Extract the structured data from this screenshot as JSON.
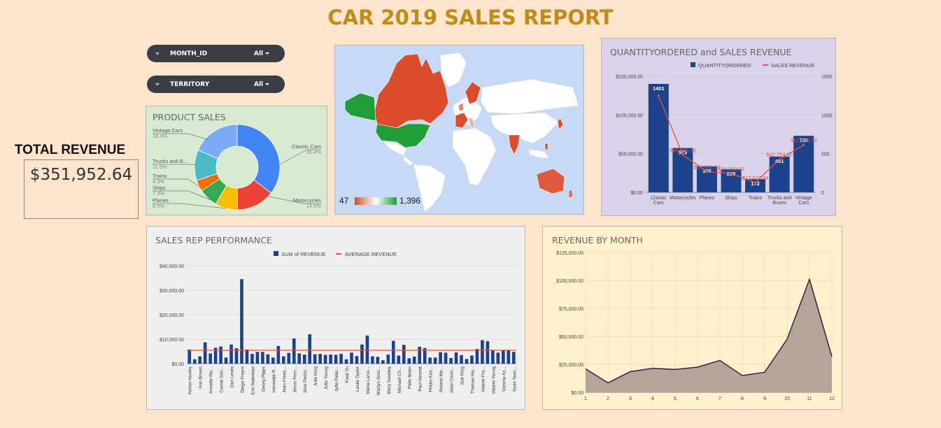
{
  "report_title": "CAR 2019 SALES REPORT",
  "filters": [
    {
      "label": "MONTH_ID",
      "value": "All"
    },
    {
      "label": "TERRITORY",
      "value": "All"
    }
  ],
  "total_revenue": {
    "label": "TOTAL REVENUE",
    "value": "$351,952.64"
  },
  "colors": {
    "background": "#fde4cd",
    "title": "#c28a16",
    "bar": "#1b428b",
    "line": "#e05545"
  },
  "product_sales": {
    "title": "PRODUCT SALES",
    "chart_data": {
      "type": "pie",
      "slices": [
        {
          "label": "Classic Cars",
          "pct": "35.4%",
          "value": 35.4,
          "color": "#4285f4"
        },
        {
          "label": "Motorcycles",
          "pct": "14.5%",
          "value": 14.5,
          "color": "#ea4335"
        },
        {
          "label": "Planes",
          "pct": "8.5%",
          "value": 8.5,
          "color": "#fbbc04"
        },
        {
          "label": "Ships",
          "pct": "7.3%",
          "value": 7.3,
          "color": "#34a853"
        },
        {
          "label": "Trains",
          "pct": "4.3%",
          "value": 4.3,
          "color": "#ff6d01"
        },
        {
          "label": "Trucks and B...",
          "pct": "11.6%",
          "value": 11.6,
          "color": "#46bdc6"
        },
        {
          "label": "Vintage Cars",
          "pct": "18.4%",
          "value": 18.4,
          "color": "#7baaf7"
        }
      ]
    }
  },
  "map": {
    "legend_min": "47",
    "legend_max": "1,396"
  },
  "qty_chart": {
    "title": "QUANTITYORDERED and SALES REVENUE",
    "chart_data": {
      "type": "bar",
      "categories": [
        "Classic Cars",
        "Motorcycles",
        "Planes",
        "Ships",
        "Trains",
        "Trucks and Buses",
        "Vintage Cars"
      ],
      "series": [
        {
          "name": "QUANTITYORDERED",
          "values": [
            1401,
            573,
            336,
            299,
            172,
            461,
            730
          ]
        },
        {
          "name": "SALES REVENUE",
          "values": [
            124712,
            48295.28,
            26801,
            24340,
            12627.84,
            42754.6,
            61206.79
          ]
        }
      ],
      "revenue_labels": [
        "",
        "$48,295.28",
        "$26,801.00",
        "$24,340.00",
        "$12,627.84",
        "$42,754.60",
        "$61,206.79"
      ],
      "left_axis": [
        "$0.00",
        "$50,000.00",
        "$100,000.00",
        "$150,000.00"
      ],
      "right_axis": [
        "0",
        "500",
        "1000",
        "1500"
      ],
      "ylim_left": [
        0,
        150000
      ],
      "ylim_right": [
        0,
        1500
      ]
    }
  },
  "sales_rep": {
    "title": "SALES REP PERFORMANCE",
    "chart_data": {
      "type": "bar",
      "series": [
        {
          "name": "SUM of REVENUE",
          "values": [
            5800,
            1800,
            3000,
            8700,
            4200,
            6500,
            7000,
            2500,
            7800,
            6300,
            34500,
            5800,
            4000,
            4800,
            4800,
            3800,
            2500,
            7200,
            3000,
            4400,
            10300,
            4200,
            3700,
            12000,
            3800,
            4000,
            3600,
            3700,
            3600,
            4000,
            1800,
            4500,
            3100,
            7800,
            11500,
            3000,
            2800,
            1400,
            3700,
            9300,
            3300,
            7700,
            2200,
            2900,
            6900,
            6400,
            2500,
            2500,
            4700,
            4500,
            2300,
            4600,
            3500,
            1900,
            3300,
            6000,
            9600,
            9200,
            5500,
            4500,
            5600,
            5500,
            4800
          ]
        },
        {
          "name": "AVERAGE REVENUE",
          "values": [
            5500
          ]
        }
      ],
      "y_ticks": [
        "$0.00",
        "$10,000.00",
        "$20,000.00",
        "$30,000.00",
        "$40,000.00"
      ],
      "ylim": [
        0,
        40000
      ],
      "x_labels": [
        "Adrian Huxley",
        "Ann Brown",
        "Annette Ric...",
        "Carine Sch...",
        "Dan Lewis",
        "Diego Freyre",
        "Eric Natividad",
        "Georg Pipps",
        "Henriette P...",
        "Jean Frees...",
        "Jesus Fern...",
        "Jose Pedro...",
        "Julie King",
        "Julie Young",
        "Jytte Peter...",
        "Kwai Yu",
        "Leslie Taylor",
        "Maria Larss...",
        "Martyn Sore...",
        "Mary Saveley",
        "Michael Ch...",
        "Palle Ibsen",
        "Paul Henriot",
        "Pirkko Kos...",
        "Roland Me...",
        "Sean Conn...",
        "Sue King",
        "Thomas Ha...",
        "Valarie Fra...",
        "Valarie Young",
        "Victoria As...",
        "Yoshi Tann..."
      ]
    }
  },
  "revenue_month": {
    "title": "REVENUE BY MONTH",
    "chart_data": {
      "type": "area",
      "x": [
        1,
        2,
        3,
        4,
        5,
        6,
        7,
        8,
        9,
        10,
        11,
        12
      ],
      "values": [
        21000,
        8500,
        18500,
        21500,
        20500,
        22500,
        28500,
        15000,
        18000,
        47500,
        101000,
        32000
      ],
      "y_ticks": [
        "$0.00",
        "$25,000.00",
        "$50,000.00",
        "$75,000.00",
        "$100,000.00",
        "$125,000.00"
      ],
      "ylim": [
        0,
        125000
      ]
    }
  }
}
